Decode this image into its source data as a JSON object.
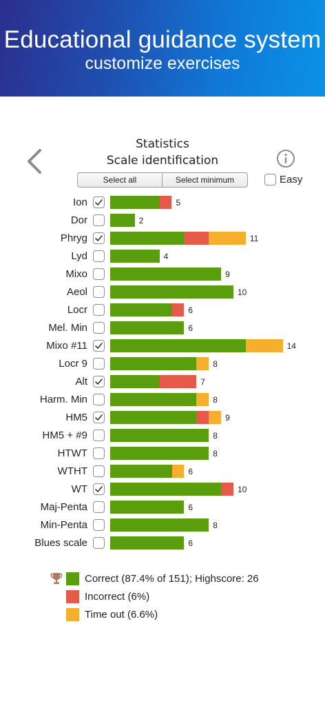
{
  "banner": {
    "title": "Educational guidance system",
    "subtitle": "customize exercises"
  },
  "header": {
    "title": "Statistics",
    "subtitle": "Scale identification",
    "back_icon": "chevron-left-icon",
    "info_icon": "info-icon"
  },
  "controls": {
    "select_all": "Select all",
    "select_minimum": "Select minimum",
    "easy_label": "Easy",
    "easy_checked": false
  },
  "colors": {
    "correct": "#5a9e0d",
    "incorrect": "#e65a4a",
    "timeout": "#f5ae2d"
  },
  "rows": [
    {
      "label": "Ion",
      "checked": true,
      "correct": 4,
      "incorrect": 1,
      "timeout": 0,
      "total": "5"
    },
    {
      "label": "Dor",
      "checked": false,
      "correct": 2,
      "incorrect": 0,
      "timeout": 0,
      "total": "2"
    },
    {
      "label": "Phryg",
      "checked": true,
      "correct": 6,
      "incorrect": 2,
      "timeout": 3,
      "total": "11"
    },
    {
      "label": "Lyd",
      "checked": false,
      "correct": 4,
      "incorrect": 0,
      "timeout": 0,
      "total": "4"
    },
    {
      "label": "Mixo",
      "checked": false,
      "correct": 9,
      "incorrect": 0,
      "timeout": 0,
      "total": "9"
    },
    {
      "label": "Aeol",
      "checked": false,
      "correct": 10,
      "incorrect": 0,
      "timeout": 0,
      "total": "10"
    },
    {
      "label": "Locr",
      "checked": false,
      "correct": 5,
      "incorrect": 1,
      "timeout": 0,
      "total": "6"
    },
    {
      "label": "Mel. Min",
      "checked": false,
      "correct": 6,
      "incorrect": 0,
      "timeout": 0,
      "total": "6"
    },
    {
      "label": "Mixo #11",
      "checked": true,
      "correct": 11,
      "incorrect": 0,
      "timeout": 3,
      "total": "14"
    },
    {
      "label": "Locr 9",
      "checked": false,
      "correct": 7,
      "incorrect": 0,
      "timeout": 1,
      "total": "8"
    },
    {
      "label": "Alt",
      "checked": true,
      "correct": 4,
      "incorrect": 3,
      "timeout": 0,
      "total": "7"
    },
    {
      "label": "Harm. Min",
      "checked": false,
      "correct": 7,
      "incorrect": 0,
      "timeout": 1,
      "total": "8"
    },
    {
      "label": "HM5",
      "checked": true,
      "correct": 7,
      "incorrect": 1,
      "timeout": 1,
      "total": "9"
    },
    {
      "label": "HM5 + #9",
      "checked": false,
      "correct": 8,
      "incorrect": 0,
      "timeout": 0,
      "total": "8"
    },
    {
      "label": "HTWT",
      "checked": false,
      "correct": 8,
      "incorrect": 0,
      "timeout": 0,
      "total": "8"
    },
    {
      "label": "WTHT",
      "checked": false,
      "correct": 5,
      "incorrect": 0,
      "timeout": 1,
      "total": "6"
    },
    {
      "label": "WT",
      "checked": true,
      "correct": 9,
      "incorrect": 1,
      "timeout": 0,
      "total": "10"
    },
    {
      "label": "Maj-Penta",
      "checked": false,
      "correct": 6,
      "incorrect": 0,
      "timeout": 0,
      "total": "6"
    },
    {
      "label": "Min-Penta",
      "checked": false,
      "correct": 8,
      "incorrect": 0,
      "timeout": 0,
      "total": "8"
    },
    {
      "label": "Blues scale",
      "checked": false,
      "correct": 6,
      "incorrect": 0,
      "timeout": 0,
      "total": "6"
    }
  ],
  "legend": {
    "correct": "Correct (87.4% of 151); Highscore: 26",
    "incorrect": "Incorrect (6%)",
    "timeout": "Time out (6.6%)",
    "trophy_icon": "trophy-icon"
  }
}
